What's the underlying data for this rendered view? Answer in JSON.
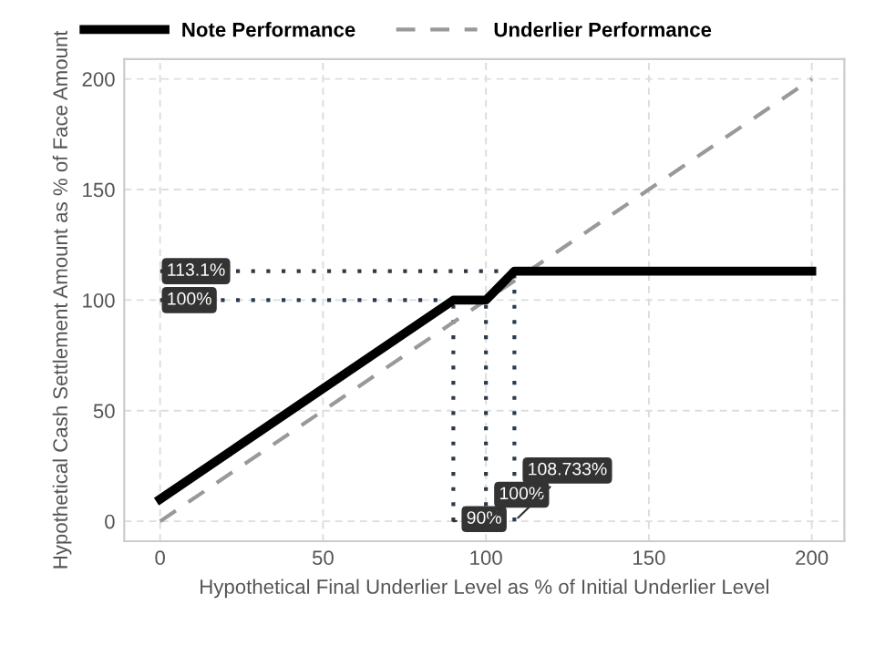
{
  "chart_data": {
    "type": "line",
    "xlabel": "Hypothetical Final Underlier Level as % of Initial Underlier Level",
    "ylabel": "Hypothetical Cash Settlement Amount as % of Face Amount",
    "series": [
      {
        "name": "Note Performance",
        "color": "#000000",
        "x": [
          0,
          90,
          100,
          108.733,
          200
        ],
        "values": [
          10,
          100,
          100,
          113.1,
          113.1
        ],
        "line_style": "solid"
      },
      {
        "name": "Underlier Performance",
        "color": "#999999",
        "x": [
          0,
          200
        ],
        "values": [
          0,
          200
        ],
        "line_style": "dashed"
      }
    ],
    "xlim": [
      -11,
      210
    ],
    "ylim": [
      -9,
      209
    ],
    "xticks": [
      0,
      50,
      100,
      150,
      200
    ],
    "yticks": [
      0,
      50,
      100,
      150,
      200
    ],
    "grid": true,
    "legend": "top",
    "ref_lines": [
      {
        "axis": "y",
        "value": 113.1,
        "label": "113.1%",
        "color": "#2b3a4a",
        "line_style": "dotted"
      },
      {
        "axis": "y",
        "value": 100,
        "label": "100%",
        "color": "#2b3a4a",
        "line_style": "dotted"
      },
      {
        "axis": "x",
        "value": 90,
        "label": "90%",
        "color": "#2b3a4a",
        "line_style": "dotted"
      },
      {
        "axis": "x",
        "value": 100,
        "label": "100%",
        "color": "#2b3a4a",
        "line_style": "dotted"
      },
      {
        "axis": "x",
        "value": 108.733,
        "label": "108.733%",
        "color": "#2b3a4a",
        "line_style": "dotted"
      }
    ]
  }
}
